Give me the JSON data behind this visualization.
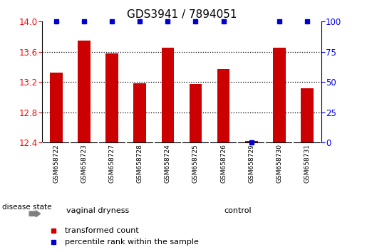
{
  "title": "GDS3941 / 7894051",
  "samples": [
    "GSM658722",
    "GSM658723",
    "GSM658727",
    "GSM658728",
    "GSM658724",
    "GSM658725",
    "GSM658726",
    "GSM658729",
    "GSM658730",
    "GSM658731"
  ],
  "transformed_counts": [
    13.32,
    13.75,
    13.58,
    13.18,
    13.65,
    13.17,
    13.37,
    12.42,
    13.65,
    13.12
  ],
  "percentile_ranks": [
    100,
    100,
    100,
    100,
    100,
    100,
    100,
    0,
    100,
    100
  ],
  "ylim_left": [
    12.4,
    14.0
  ],
  "ylim_right": [
    0,
    100
  ],
  "yticks_left": [
    12.4,
    12.8,
    13.2,
    13.6,
    14.0
  ],
  "yticks_right": [
    0,
    25,
    50,
    75,
    100
  ],
  "bar_color": "#cc0000",
  "dot_color": "#0000cc",
  "group1_label": "vaginal dryness",
  "group2_label": "control",
  "group1_count": 4,
  "group2_count": 6,
  "disease_state_label": "disease state",
  "legend_bar_label": "transformed count",
  "legend_dot_label": "percentile rank within the sample",
  "background_color": "#ffffff",
  "group_bg_color": "#66dd66",
  "sample_bg_color": "#cccccc",
  "grid_color": "#000000",
  "title_fontsize": 11,
  "tick_fontsize": 8.5,
  "label_fontsize": 8
}
